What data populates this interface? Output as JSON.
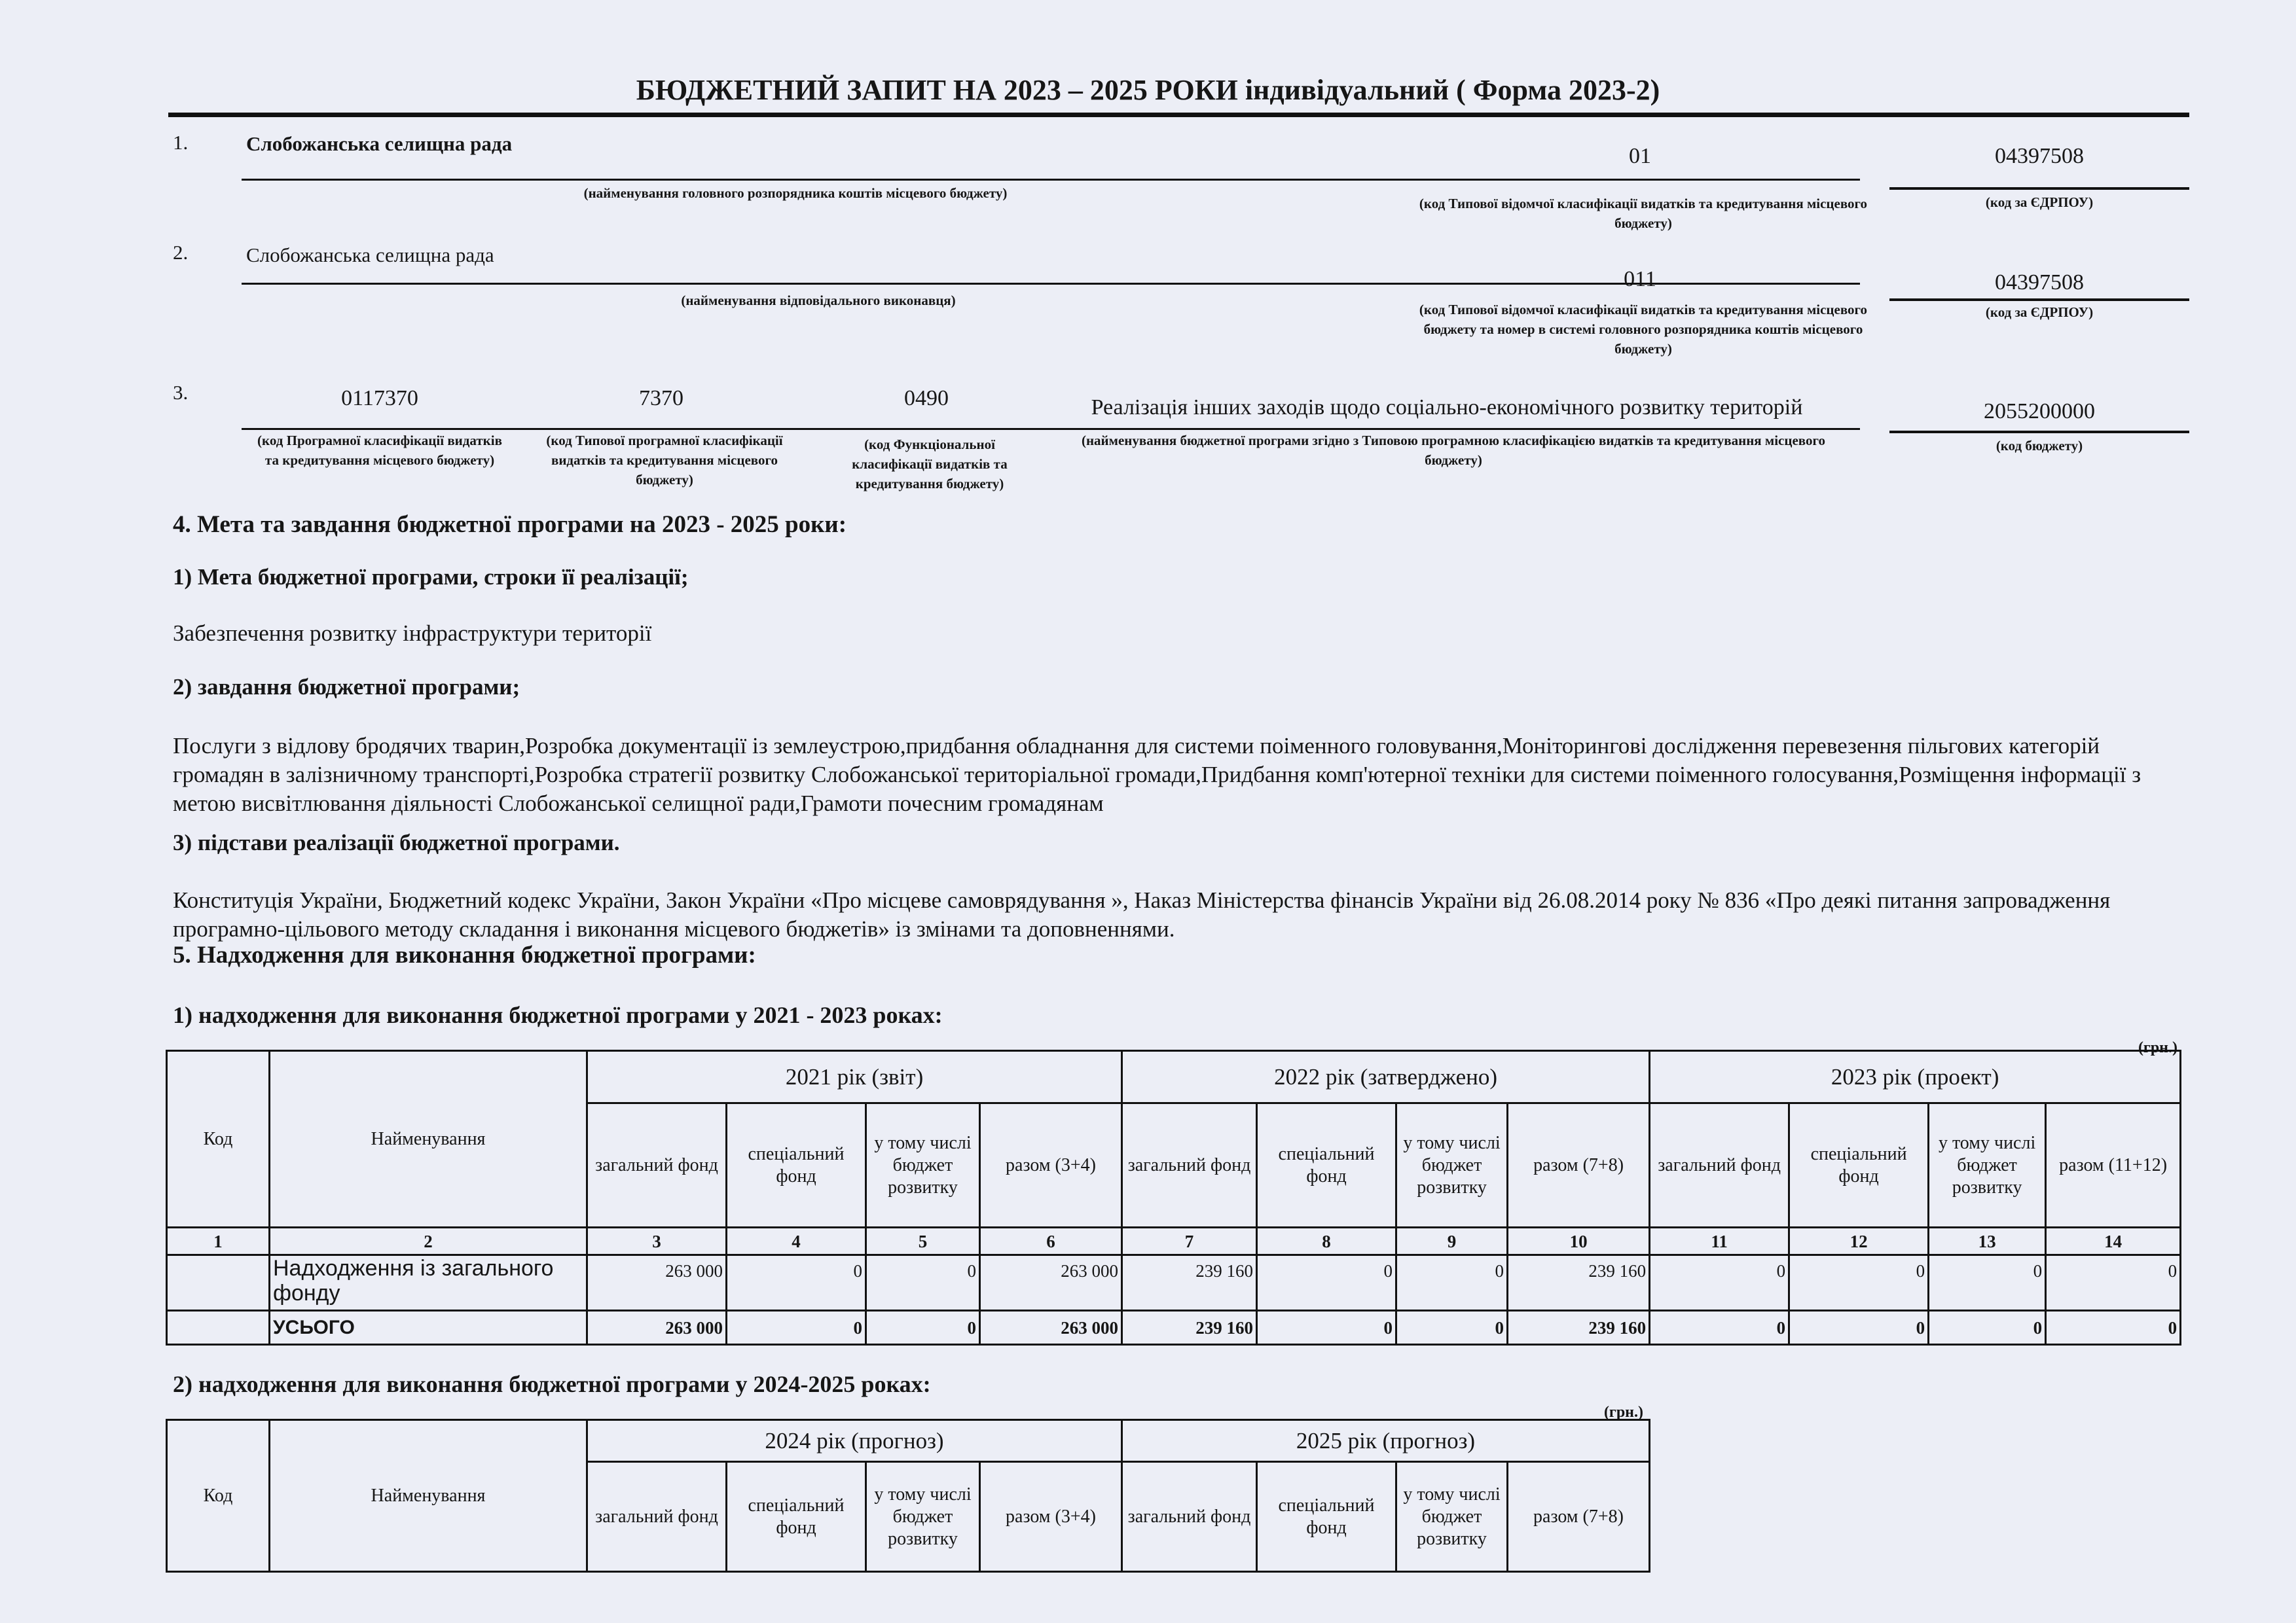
{
  "title": "БЮДЖЕТНИЙ ЗАПИТ НА 2023 – 2025 РОКИ індивідуальний ( Форма 2023-2)",
  "section1": {
    "num": "1.",
    "name": "Слобожанська селищна рада",
    "name_caption": "(найменування головного розпорядника коштів місцевого бюджету)",
    "code": "01",
    "code_caption": "(код Типової відомчої класифікації видатків та кредитування місцевого бюджету)",
    "edrpou": "04397508",
    "edrpou_caption": "(код за ЄДРПОУ)"
  },
  "section2": {
    "num": "2.",
    "name": "Слобожанська селищна рада",
    "name_caption": "(найменування відповідального виконавця)",
    "code": "011",
    "code_caption": "(код Типової відомчої класифікації видатків та кредитування місцевого бюджету та номер в системі головного розпорядника коштів місцевого бюджету)",
    "edrpou": "04397508",
    "edrpou_caption": "(код за ЄДРПОУ)"
  },
  "section3": {
    "num": "3.",
    "program_code": "0117370",
    "program_code_caption": "(код Програмної класифікації видатків та кредитування місцевого бюджету)",
    "typical_code": "7370",
    "typical_code_caption": "(код Типової програмної класифікації видатків та кредитування місцевого бюджету)",
    "functional_code": "0490",
    "functional_code_caption": "(код Функціональної класифікації видатків та кредитування бюджету)",
    "program_name": "Реалізація інших заходів щодо соціально-економічного розвитку територій",
    "program_name_caption": "(найменування бюджетної програми згідно з Типовою програмною класифікацією видатків та кредитування місцевого бюджету)",
    "budget_code": "2055200000",
    "budget_code_caption": "(код бюджету)"
  },
  "goals": {
    "heading": "4. Мета та завдання бюджетної програми на 2023 - 2025 роки:",
    "goal_heading": "1) Мета бюджетної програми, строки її реалізації;",
    "goal_text": "Забезпечення розвитку інфраструктури території",
    "tasks_heading": "2)  завдання бюджетної програми;",
    "tasks_text": "Послуги з відлову бродячих тварин,Розробка документації із землеустрою,придбання обладнання для системи поіменного головування,Моніторингові дослідження перевезення пільгових категорій громадян в залізничному транспорті,Розробка стратегії розвитку Слобожанської територіальної громади,Придбання комп'ютерної техніки для системи поіменного голосування,Розміщення інформації з метою висвітлювання діяльності  Слобожанської селищної ради,Грамоти почесним громадянам",
    "basis_heading": "3) підстави реалізації бюджетної програми.",
    "basis_text": "Конституція України, Бюджетний кодекс України, Закон України  «Про місцеве самоврядування », Наказ Міністерства фінансів України від 26.08.2014 року № 836 «Про деякі питання запровадження програмно-цільового методу складання і виконання місцевого бюджетів» із змінами та доповненнями."
  },
  "revenue": {
    "heading": "5. Надходження для виконання бюджетної програми:",
    "table1": {
      "heading": "1) надходження для виконання бюджетної програми у 2021 - 2023 роках:",
      "unit": "(грн.)",
      "col_code": "Код",
      "col_name": "Найменування",
      "years": [
        "2021 рік (звіт)",
        "2022 рік (затверджено)",
        "2023 рік (проект)"
      ],
      "subcols": [
        [
          "загальний фонд",
          "спеціальний фонд",
          "у тому числі бюджет розвитку",
          "разом (3+4)"
        ],
        [
          "загальний фонд",
          "спеціальний фонд",
          "у тому числі бюджет розвитку",
          "разом (7+8)"
        ],
        [
          "загальний фонд",
          "спеціальний фонд",
          "у тому числі бюджет розвитку",
          "разом (11+12)"
        ]
      ],
      "numbers": [
        "1",
        "2",
        "3",
        "4",
        "5",
        "6",
        "7",
        "8",
        "9",
        "10",
        "11",
        "12",
        "13",
        "14"
      ],
      "rows": [
        {
          "code": "",
          "name": "Надходження із загального фонду",
          "values": [
            "263 000",
            "0",
            "0",
            "263 000",
            "239 160",
            "0",
            "0",
            "239 160",
            "0",
            "0",
            "0",
            "0"
          ]
        },
        {
          "code": "",
          "name": "УСЬОГО",
          "values": [
            "263 000",
            "0",
            "0",
            "263 000",
            "239 160",
            "0",
            "0",
            "239 160",
            "0",
            "0",
            "0",
            "0"
          ]
        }
      ]
    },
    "table2": {
      "heading": "2) надходження для виконання бюджетної програми у 2024-2025 роках:",
      "unit": "(грн.)",
      "col_code": "Код",
      "col_name": "Найменування",
      "years": [
        "2024 рік (прогноз)",
        "2025 рік (прогноз)"
      ],
      "subcols": [
        [
          "загальний фонд",
          "спеціальний фонд",
          "у тому числі бюджет розвитку",
          "разом (3+4)"
        ],
        [
          "загальний фонд",
          "спеціальний фонд",
          "у тому числі бюджет розвитку",
          "разом (7+8)"
        ]
      ]
    }
  }
}
